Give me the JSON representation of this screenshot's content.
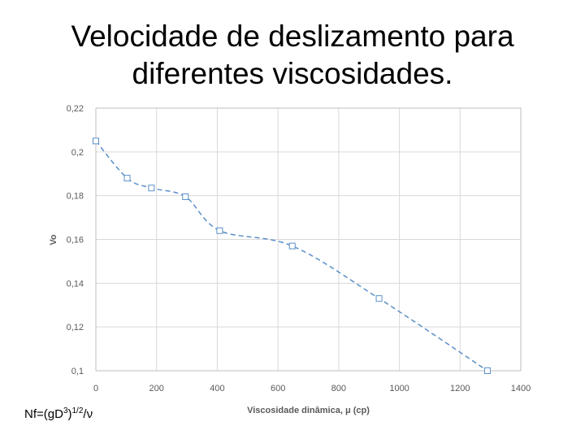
{
  "slide": {
    "title_line1": "Velocidade de deslizamento para",
    "title_line2": "diferentes viscosidades."
  },
  "footnote": {
    "base": "Nf=(gD",
    "exp1": "3",
    "mid": ")",
    "exp2": "1/2",
    "tail": "/ν"
  },
  "chart_data": {
    "type": "line",
    "title": "",
    "xlabel": "Viscosidade dinâmica, μ (cp)",
    "ylabel": "Vo",
    "xlim": [
      0,
      1400
    ],
    "ylim": [
      0.1,
      0.22
    ],
    "xticks": [
      0,
      200,
      400,
      600,
      800,
      1000,
      1200,
      1400
    ],
    "xtick_labels": [
      "0",
      "200",
      "400",
      "600",
      "800",
      "1000",
      "1200",
      "1400"
    ],
    "yticks": [
      0.1,
      0.12,
      0.14,
      0.16,
      0.18,
      0.2,
      0.22
    ],
    "ytick_labels": [
      "0,1",
      "0,12",
      "0,14",
      "0,16",
      "0,18",
      "0,2",
      "0,22"
    ],
    "grid": true,
    "series": [
      {
        "x": [
          0,
          103,
          183,
          295,
          408,
          647,
          933,
          1290
        ],
        "y": [
          0.205,
          0.188,
          0.1835,
          0.1795,
          0.164,
          0.157,
          0.133,
          0.1
        ],
        "color": "#5b8fc9",
        "line_style": "dashed",
        "marker": "open-square"
      }
    ]
  }
}
